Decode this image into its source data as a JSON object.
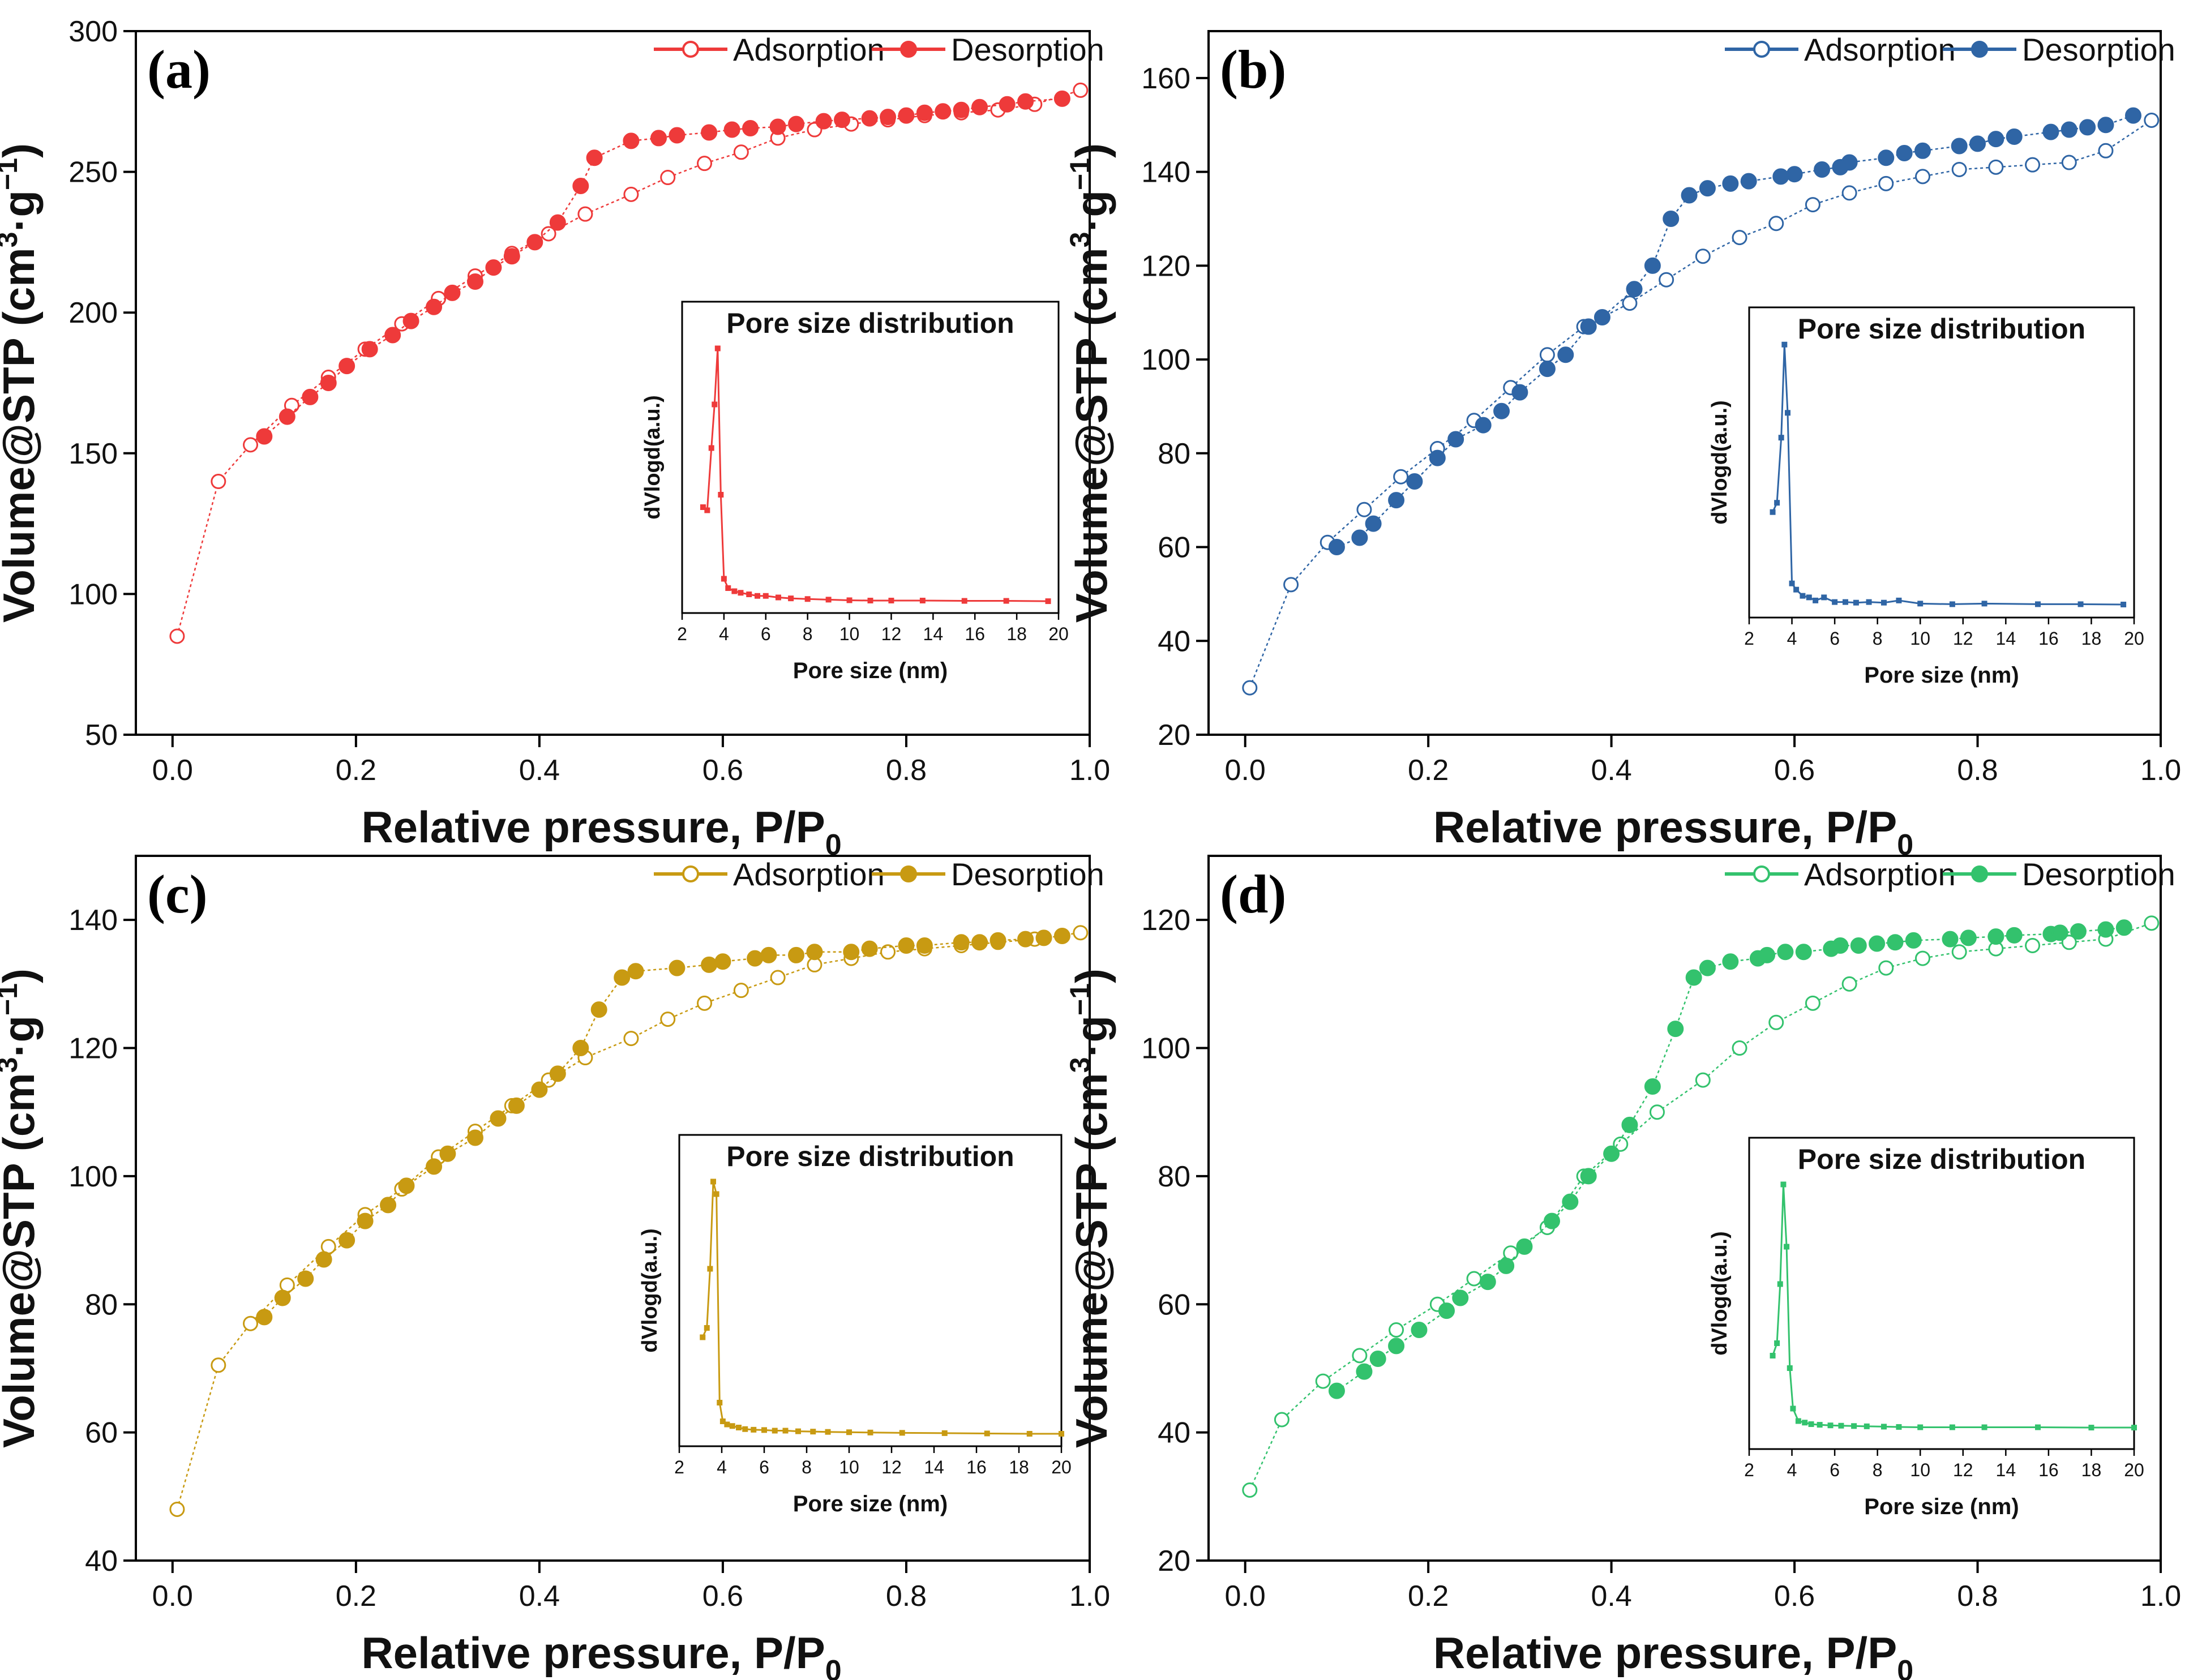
{
  "figure_title": "",
  "chart_data": [
    {
      "panel": "(a)",
      "type": "scatter",
      "color": "#ee3a3a",
      "xlabel": "Relative pressure, P/P",
      "xlabel_sub": "0",
      "ylabel_pre": "Volume@STP (cm",
      "ylabel_sup1": "3",
      "ylabel_mid": "·g",
      "ylabel_sup2": "−1",
      "ylabel_post": ")",
      "xlim": [
        -0.04,
        1.0
      ],
      "ylim": [
        50,
        300
      ],
      "xticks": [
        0.0,
        0.2,
        0.4,
        0.6,
        0.8,
        1.0
      ],
      "xtick_labels": [
        "0.0",
        "0.2",
        "0.4",
        "0.6",
        "0.8",
        "1.0"
      ],
      "yticks": [
        50,
        100,
        150,
        200,
        250,
        300
      ],
      "ytick_labels": [
        "50",
        "100",
        "150",
        "200",
        "250",
        "300"
      ],
      "legend": [
        "Adsorption",
        "Desorption"
      ],
      "series": [
        {
          "name": "Adsorption",
          "marker": "open-circle",
          "x": [
            0.005,
            0.05,
            0.085,
            0.13,
            0.17,
            0.21,
            0.25,
            0.29,
            0.33,
            0.37,
            0.41,
            0.45,
            0.5,
            0.54,
            0.58,
            0.62,
            0.66,
            0.7,
            0.74,
            0.78,
            0.82,
            0.86,
            0.9,
            0.94,
            0.99
          ],
          "y": [
            85,
            140,
            153,
            167,
            177,
            187,
            196,
            205,
            213,
            221,
            228,
            235,
            242,
            248,
            253,
            257,
            262,
            265,
            267,
            268.5,
            270,
            271,
            272,
            274,
            279
          ]
        },
        {
          "name": "Desorption",
          "marker": "filled-circle",
          "x": [
            0.1,
            0.125,
            0.15,
            0.17,
            0.19,
            0.215,
            0.24,
            0.26,
            0.285,
            0.305,
            0.33,
            0.35,
            0.37,
            0.395,
            0.42,
            0.445,
            0.46,
            0.5,
            0.53,
            0.55,
            0.585,
            0.61,
            0.63,
            0.66,
            0.68,
            0.71,
            0.73,
            0.76,
            0.78,
            0.8,
            0.82,
            0.84,
            0.86,
            0.88,
            0.91,
            0.93,
            0.97
          ],
          "y": [
            156,
            163,
            170,
            175,
            181,
            187,
            192,
            197,
            202,
            207,
            211,
            216,
            220,
            225,
            232,
            245,
            255,
            261,
            262,
            263,
            264,
            265,
            265.5,
            266,
            267,
            268,
            268.5,
            269,
            269.5,
            270,
            271,
            271.5,
            272,
            273,
            274,
            275,
            276
          ]
        }
      ],
      "inset": {
        "title": "Pore size distribution",
        "xlabel": "Pore size (nm)",
        "ylabel": "dVlogd(a.u.)",
        "xlim": [
          2,
          20
        ],
        "ylim": [
          0,
          100
        ],
        "xticks": [
          2,
          4,
          6,
          8,
          10,
          12,
          14,
          16,
          18,
          20
        ],
        "xtick_labels": [
          "2",
          "4",
          "6",
          "8",
          "10",
          "12",
          "14",
          "16",
          "18",
          "20"
        ],
        "x": [
          3.0,
          3.2,
          3.4,
          3.55,
          3.7,
          3.85,
          4.0,
          4.2,
          4.5,
          4.8,
          5.2,
          5.6,
          6.0,
          6.6,
          7.2,
          8.0,
          9.0,
          10.0,
          11.0,
          12.0,
          13.5,
          15.5,
          17.5,
          19.5
        ],
        "y": [
          34,
          33,
          53,
          67,
          85,
          38,
          11,
          8,
          7,
          6.5,
          6,
          5.5,
          5.5,
          5,
          4.7,
          4.5,
          4.3,
          4.1,
          4,
          4,
          4,
          3.9,
          3.9,
          3.8
        ]
      }
    },
    {
      "panel": "(b)",
      "type": "scatter",
      "color": "#2f65a5",
      "xlabel": "Relative pressure, P/P",
      "xlabel_sub": "0",
      "ylabel_pre": "Volume@STP (cm",
      "ylabel_sup1": "3",
      "ylabel_mid": "·g",
      "ylabel_sup2": "−1",
      "ylabel_post": ")",
      "xlim": [
        -0.04,
        1.0
      ],
      "ylim": [
        20,
        170
      ],
      "xticks": [
        0.0,
        0.2,
        0.4,
        0.6,
        0.8,
        1.0
      ],
      "xtick_labels": [
        "0.0",
        "0.2",
        "0.4",
        "0.6",
        "0.8",
        "1.0"
      ],
      "yticks": [
        20,
        40,
        60,
        80,
        100,
        120,
        140,
        160
      ],
      "ytick_labels": [
        "20",
        "40",
        "60",
        "80",
        "100",
        "120",
        "140",
        "160"
      ],
      "legend": [
        "Adsorption",
        "Desorption"
      ],
      "series": [
        {
          "name": "Adsorption",
          "marker": "open-circle",
          "x": [
            0.005,
            0.05,
            0.09,
            0.13,
            0.17,
            0.21,
            0.25,
            0.29,
            0.33,
            0.37,
            0.42,
            0.46,
            0.5,
            0.54,
            0.58,
            0.62,
            0.66,
            0.7,
            0.74,
            0.78,
            0.82,
            0.86,
            0.9,
            0.94,
            0.99
          ],
          "y": [
            30,
            52,
            61,
            68,
            75,
            81,
            87,
            94,
            101,
            107,
            112,
            117,
            122,
            126,
            129,
            133,
            135.5,
            137.5,
            139,
            140.5,
            141,
            141.5,
            142,
            144.5,
            151
          ]
        },
        {
          "name": "Desorption",
          "marker": "filled-circle",
          "x": [
            0.1,
            0.125,
            0.14,
            0.165,
            0.185,
            0.21,
            0.23,
            0.26,
            0.28,
            0.3,
            0.33,
            0.35,
            0.375,
            0.39,
            0.425,
            0.445,
            0.465,
            0.485,
            0.505,
            0.53,
            0.55,
            0.585,
            0.6,
            0.63,
            0.65,
            0.66,
            0.7,
            0.72,
            0.74,
            0.78,
            0.8,
            0.82,
            0.84,
            0.88,
            0.9,
            0.92,
            0.94,
            0.97
          ],
          "y": [
            60,
            62,
            65,
            70,
            74,
            79,
            83,
            86,
            89,
            93,
            98,
            101,
            107,
            109,
            115,
            120,
            130,
            135,
            136.5,
            137.5,
            138,
            139,
            139.5,
            140.5,
            141,
            142,
            143,
            144,
            144.5,
            145.5,
            146,
            147,
            147.5,
            148.5,
            149,
            149.5,
            150,
            152
          ]
        }
      ],
      "inset": {
        "title": "Pore size distribution",
        "xlabel": "Pore size (nm)",
        "ylabel": "dVlogd(a.u.)",
        "xlim": [
          2,
          20
        ],
        "ylim": [
          0,
          100
        ],
        "xticks": [
          2,
          4,
          6,
          8,
          10,
          12,
          14,
          16,
          18,
          20
        ],
        "xtick_labels": [
          "2",
          "4",
          "6",
          "8",
          "10",
          "12",
          "14",
          "16",
          "18",
          "20"
        ],
        "x": [
          3.1,
          3.3,
          3.5,
          3.65,
          3.8,
          4.0,
          4.2,
          4.5,
          4.8,
          5.1,
          5.5,
          6.0,
          6.5,
          7.0,
          7.6,
          8.3,
          9.0,
          10.0,
          11.5,
          13.0,
          15.5,
          17.5,
          19.5
        ],
        "y": [
          34,
          37,
          58,
          88,
          66,
          11,
          9,
          7,
          6.5,
          5.5,
          6.5,
          5,
          5,
          4.8,
          5,
          4.8,
          5.5,
          4.5,
          4.3,
          4.5,
          4.3,
          4.3,
          4.2
        ]
      }
    },
    {
      "panel": "(c)",
      "type": "scatter",
      "color": "#c89a12",
      "xlabel": "Relative pressure, P/P",
      "xlabel_sub": "0",
      "ylabel_pre": "Volume@STP (cm",
      "ylabel_sup1": "3",
      "ylabel_mid": "·g",
      "ylabel_sup2": "−1",
      "ylabel_post": ")",
      "xlim": [
        -0.04,
        1.0
      ],
      "ylim": [
        40,
        150
      ],
      "xticks": [
        0.0,
        0.2,
        0.4,
        0.6,
        0.8,
        1.0
      ],
      "xtick_labels": [
        "0.0",
        "0.2",
        "0.4",
        "0.6",
        "0.8",
        "1.0"
      ],
      "yticks": [
        40,
        60,
        80,
        100,
        120,
        140
      ],
      "ytick_labels": [
        "40",
        "60",
        "80",
        "100",
        "120",
        "140"
      ],
      "legend": [
        "Adsorption",
        "Desorption"
      ],
      "series": [
        {
          "name": "Adsorption",
          "marker": "open-circle",
          "x": [
            0.005,
            0.05,
            0.085,
            0.125,
            0.17,
            0.21,
            0.25,
            0.29,
            0.33,
            0.37,
            0.41,
            0.45,
            0.5,
            0.54,
            0.58,
            0.62,
            0.66,
            0.7,
            0.74,
            0.78,
            0.82,
            0.86,
            0.9,
            0.94,
            0.99
          ],
          "y": [
            48,
            70.5,
            77,
            83,
            89,
            94,
            98,
            103,
            107,
            111,
            115,
            118.5,
            121.5,
            124.5,
            127,
            129,
            131,
            133,
            134,
            135,
            135.5,
            136,
            136.5,
            137,
            138
          ]
        },
        {
          "name": "Desorption",
          "marker": "filled-circle",
          "x": [
            0.1,
            0.12,
            0.145,
            0.165,
            0.19,
            0.21,
            0.235,
            0.255,
            0.285,
            0.3,
            0.33,
            0.355,
            0.375,
            0.4,
            0.42,
            0.445,
            0.465,
            0.49,
            0.505,
            0.55,
            0.585,
            0.6,
            0.635,
            0.65,
            0.68,
            0.7,
            0.74,
            0.76,
            0.8,
            0.82,
            0.86,
            0.88,
            0.9,
            0.93,
            0.95,
            0.97
          ],
          "y": [
            78,
            81,
            84,
            87,
            90,
            93,
            95.5,
            98.5,
            101.5,
            103.5,
            106,
            109,
            111,
            113.5,
            116,
            120,
            126,
            131,
            132,
            132.5,
            133,
            133.5,
            134,
            134.5,
            134.5,
            135,
            135,
            135.5,
            136,
            136,
            136.5,
            136.5,
            136.8,
            137,
            137.2,
            137.5
          ]
        }
      ],
      "inset": {
        "title": "Pore size distribution",
        "xlabel": "Pore size (nm)",
        "ylabel": "dVlogd(a.u.)",
        "xlim": [
          2,
          20
        ],
        "ylim": [
          0,
          100
        ],
        "xticks": [
          2,
          4,
          6,
          8,
          10,
          12,
          14,
          16,
          18,
          20
        ],
        "xtick_labels": [
          "2",
          "4",
          "6",
          "8",
          "10",
          "12",
          "14",
          "16",
          "18",
          "20"
        ],
        "x": [
          3.1,
          3.3,
          3.45,
          3.6,
          3.75,
          3.9,
          4.05,
          4.25,
          4.5,
          4.8,
          5.1,
          5.5,
          6.0,
          6.5,
          7.0,
          7.6,
          8.3,
          9.0,
          10.0,
          11.0,
          12.5,
          14.5,
          16.5,
          18.5,
          20
        ],
        "y": [
          35,
          38,
          57,
          85,
          81,
          14,
          8,
          7,
          6.5,
          6,
          5.5,
          5.3,
          5.2,
          5,
          5,
          4.8,
          4.7,
          4.6,
          4.5,
          4.4,
          4.3,
          4.2,
          4.1,
          4,
          4
        ]
      }
    },
    {
      "panel": "(d)",
      "type": "scatter",
      "color": "#33c26d",
      "xlabel": "Relative pressure, P/P",
      "xlabel_sub": "0",
      "ylabel_pre": "Volume@STP (cm",
      "ylabel_sup1": "3",
      "ylabel_mid": "·g",
      "ylabel_sup2": "−1",
      "ylabel_post": ")",
      "xlim": [
        -0.04,
        1.0
      ],
      "ylim": [
        20,
        130
      ],
      "xticks": [
        0.0,
        0.2,
        0.4,
        0.6,
        0.8,
        1.0
      ],
      "xtick_labels": [
        "0.0",
        "0.2",
        "0.4",
        "0.6",
        "0.8",
        "1.0"
      ],
      "yticks": [
        20,
        40,
        60,
        80,
        100,
        120
      ],
      "ytick_labels": [
        "20",
        "40",
        "60",
        "80",
        "100",
        "120"
      ],
      "legend": [
        "Adsorption",
        "Desorption"
      ],
      "series": [
        {
          "name": "Adsorption",
          "marker": "open-circle",
          "x": [
            0.005,
            0.04,
            0.085,
            0.125,
            0.165,
            0.21,
            0.25,
            0.29,
            0.33,
            0.37,
            0.41,
            0.45,
            0.5,
            0.54,
            0.58,
            0.62,
            0.66,
            0.7,
            0.74,
            0.78,
            0.82,
            0.86,
            0.9,
            0.94,
            0.99
          ],
          "y": [
            31,
            42,
            48,
            52,
            56,
            60,
            64,
            68,
            72,
            80,
            85,
            90,
            95,
            100,
            104,
            107,
            110,
            112.5,
            114,
            115,
            115.5,
            116,
            116.5,
            117,
            119.5
          ]
        },
        {
          "name": "Desorption",
          "marker": "filled-circle",
          "x": [
            0.1,
            0.13,
            0.145,
            0.165,
            0.19,
            0.22,
            0.235,
            0.265,
            0.285,
            0.305,
            0.335,
            0.355,
            0.375,
            0.4,
            0.42,
            0.445,
            0.47,
            0.49,
            0.505,
            0.53,
            0.56,
            0.57,
            0.59,
            0.61,
            0.64,
            0.65,
            0.67,
            0.69,
            0.71,
            0.73,
            0.77,
            0.79,
            0.82,
            0.84,
            0.88,
            0.89,
            0.91,
            0.94,
            0.96
          ],
          "y": [
            46.5,
            49.5,
            51.5,
            53.5,
            56,
            59,
            61,
            63.5,
            66,
            69,
            73,
            76,
            80,
            83.5,
            88,
            94,
            103,
            111,
            112.5,
            113.5,
            114,
            114.5,
            115,
            115,
            115.5,
            116,
            116,
            116.3,
            116.5,
            116.8,
            117,
            117.2,
            117.4,
            117.6,
            117.8,
            118,
            118.2,
            118.5,
            118.8
          ]
        }
      ],
      "inset": {
        "title": "Pore size distribution",
        "xlabel": "Pore size (nm)",
        "ylabel": "dVlogd(a.u.)",
        "xlim": [
          2,
          20
        ],
        "ylim": [
          0,
          100
        ],
        "xticks": [
          2,
          4,
          6,
          8,
          10,
          12,
          14,
          16,
          18,
          20
        ],
        "xtick_labels": [
          "2",
          "4",
          "6",
          "8",
          "10",
          "12",
          "14",
          "16",
          "18",
          "20"
        ],
        "x": [
          3.1,
          3.3,
          3.45,
          3.6,
          3.75,
          3.9,
          4.05,
          4.3,
          4.6,
          4.9,
          5.3,
          5.8,
          6.3,
          6.9,
          7.5,
          8.3,
          9.0,
          10.0,
          11.5,
          13.0,
          15.5,
          18.0,
          20
        ],
        "y": [
          30,
          34,
          53,
          85,
          65,
          26,
          13,
          9,
          8.5,
          8,
          7.8,
          7.6,
          7.5,
          7.4,
          7.3,
          7.2,
          7.1,
          7,
          7,
          7,
          7,
          6.9,
          6.9
        ]
      }
    }
  ]
}
